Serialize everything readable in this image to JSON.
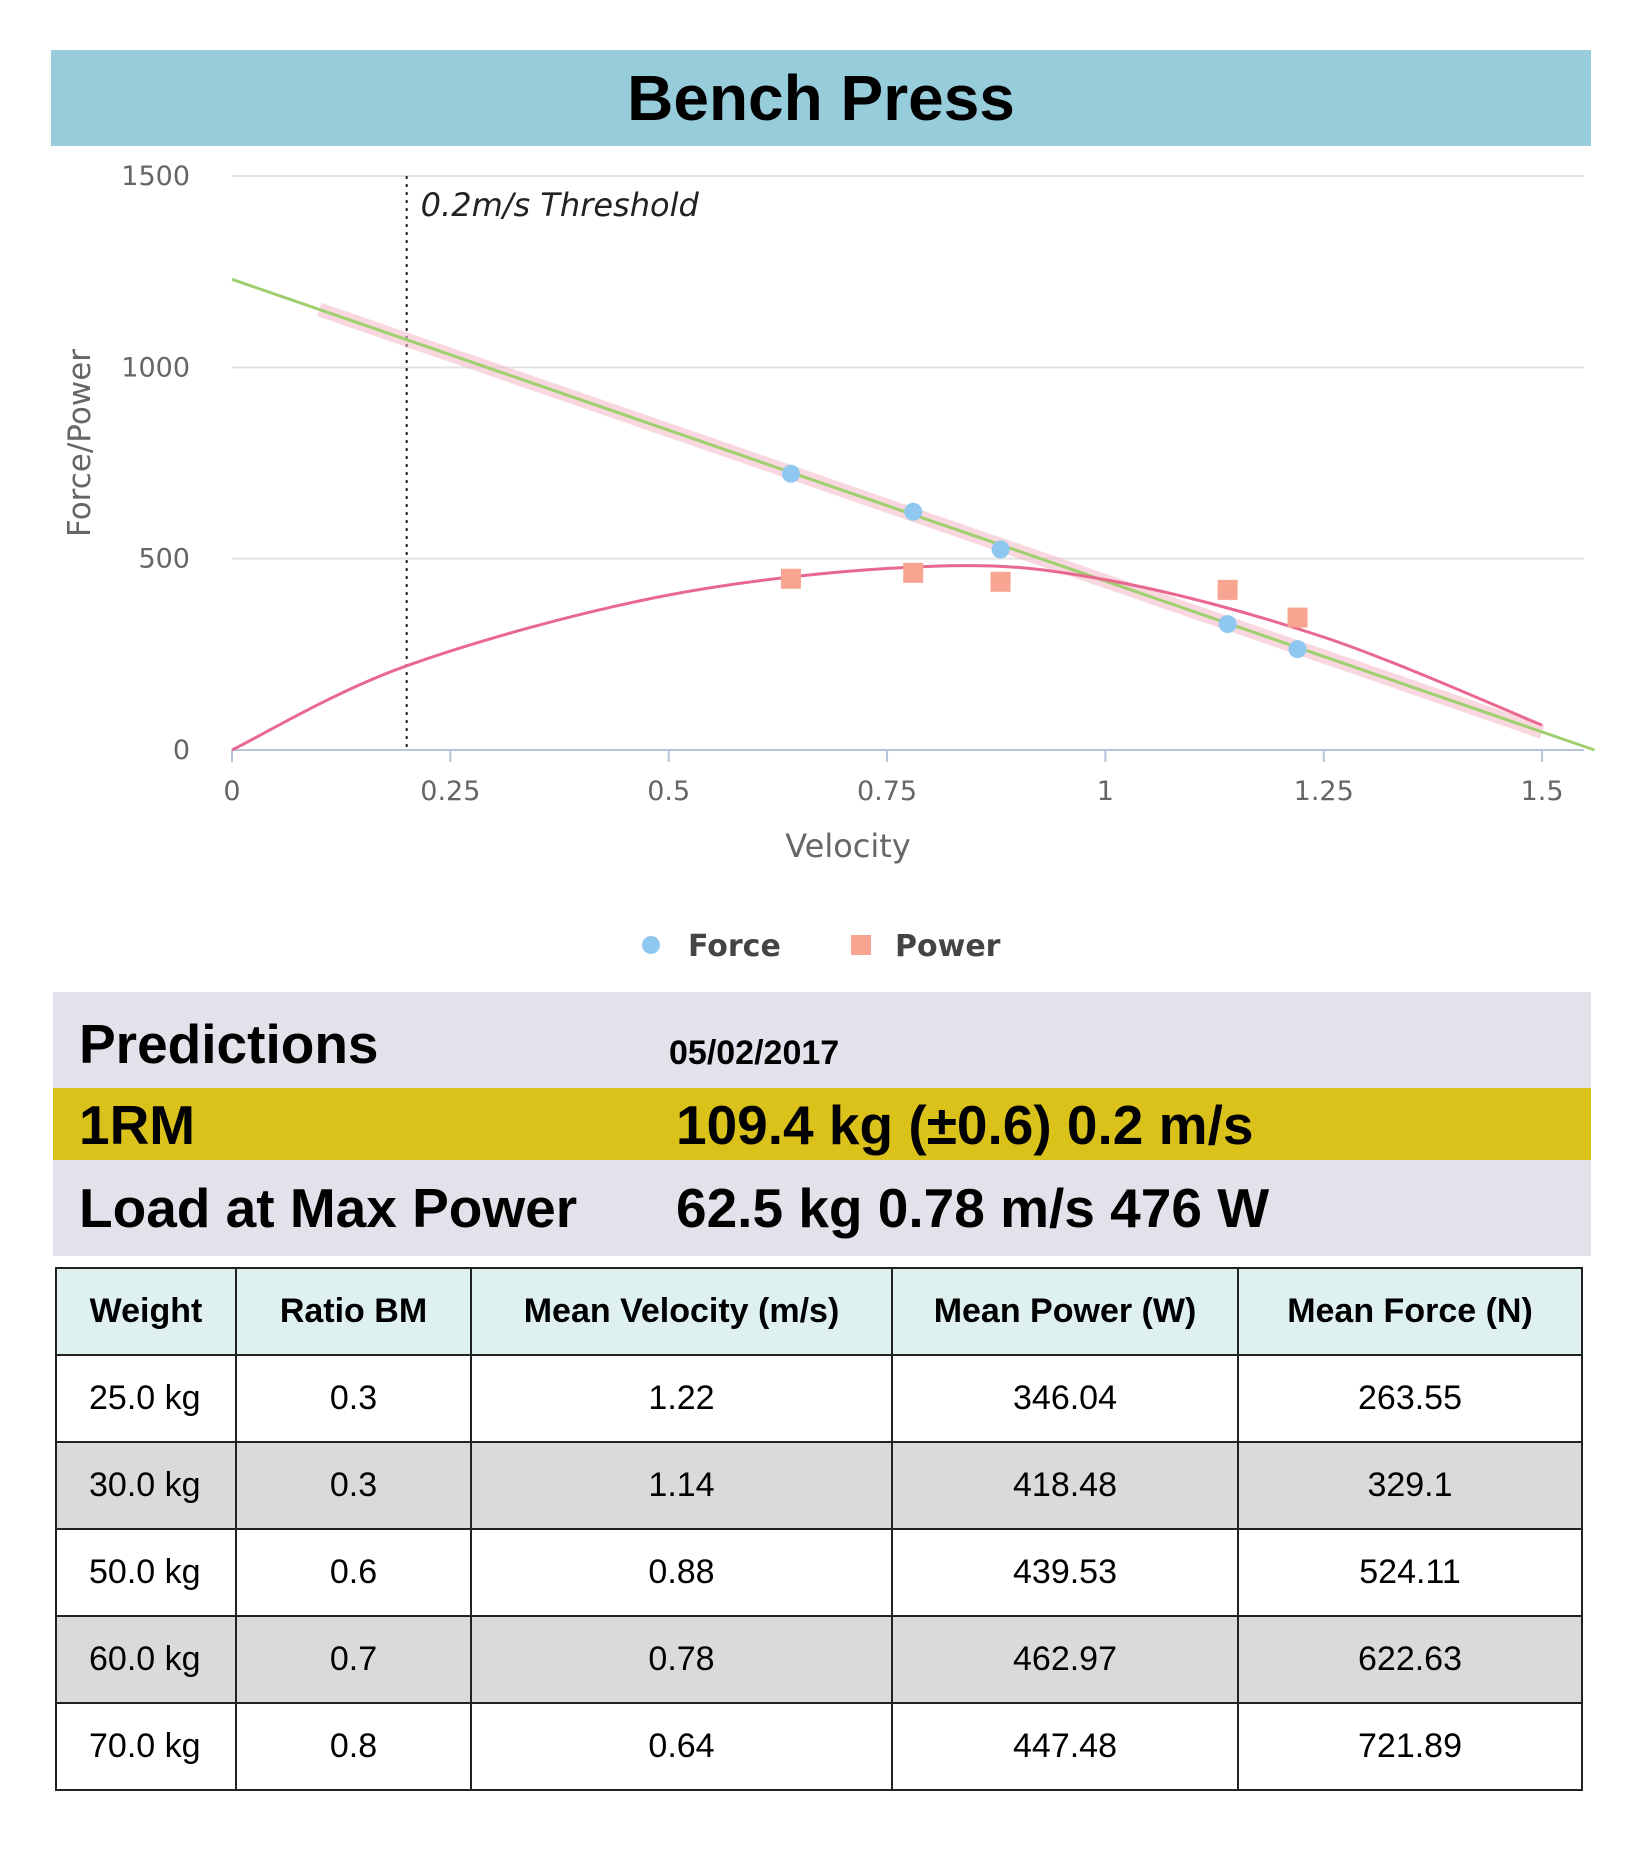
{
  "header": {
    "title": "Bench Press"
  },
  "colors": {
    "force": "#8ec8f0",
    "power": "#f7a590",
    "force_fit": "#9fcf6e",
    "power_fit": "#e8688f",
    "title_bg": "#97cddb",
    "highlight": "#dbc21a"
  },
  "chart_data": {
    "type": "scatter",
    "xlabel": "Velocity",
    "ylabel": "Force/Power",
    "xlim": [
      0,
      1.55
    ],
    "ylim": [
      0,
      1500
    ],
    "x_ticks": [
      "0",
      "0.25",
      "0.5",
      "0.75",
      "1",
      "1.25",
      "1.5"
    ],
    "x_tick_values": [
      0,
      0.25,
      0.5,
      0.75,
      1,
      1.25,
      1.5
    ],
    "y_ticks": [
      "0",
      "500",
      "1000",
      "1500"
    ],
    "y_tick_values": [
      0,
      500,
      1000,
      1500
    ],
    "grid": true,
    "legend_position": "bottom-center",
    "series": [
      {
        "name": "Force",
        "marker": "circle",
        "x": [
          0.64,
          0.78,
          0.88,
          1.14,
          1.22
        ],
        "y": [
          721.89,
          622.63,
          524.11,
          329.1,
          263.55
        ]
      },
      {
        "name": "Power",
        "marker": "square",
        "x": [
          0.64,
          0.78,
          0.88,
          1.14,
          1.22
        ],
        "y": [
          447.48,
          462.97,
          439.53,
          418.48,
          346.04
        ]
      }
    ],
    "force_fit": {
      "type": "linear",
      "x": [
        0,
        1.56
      ],
      "y": [
        1230,
        0
      ]
    },
    "power_fit": {
      "type": "quadratic",
      "x": [
        0,
        0.2,
        0.5,
        0.8,
        1.0,
        1.25,
        1.5
      ],
      "y": [
        0,
        220,
        405,
        480,
        445,
        295,
        65
      ]
    },
    "threshold": {
      "x": 0.2,
      "label": "0.2m/s Threshold"
    }
  },
  "predictions": {
    "heading": "Predictions",
    "date": "05/02/2017",
    "one_rm_label": "1RM",
    "one_rm_value": "109.4 kg (±0.6) 0.2 m/s",
    "max_power_label": "Load at Max Power",
    "max_power_value": "62.5 kg 0.78 m/s 476 W"
  },
  "table": {
    "headers": [
      "Weight",
      "Ratio BM",
      "Mean Velocity (m/s)",
      "Mean Power (W)",
      "Mean Force (N)"
    ],
    "rows": [
      [
        "25.0 kg",
        "0.3",
        "1.22",
        "346.04",
        "263.55"
      ],
      [
        "30.0 kg",
        "0.3",
        "1.14",
        "418.48",
        "329.1"
      ],
      [
        "50.0 kg",
        "0.6",
        "0.88",
        "439.53",
        "524.11"
      ],
      [
        "60.0 kg",
        "0.7",
        "0.78",
        "462.97",
        "622.63"
      ],
      [
        "70.0 kg",
        "0.8",
        "0.64",
        "447.48",
        "721.89"
      ]
    ]
  }
}
